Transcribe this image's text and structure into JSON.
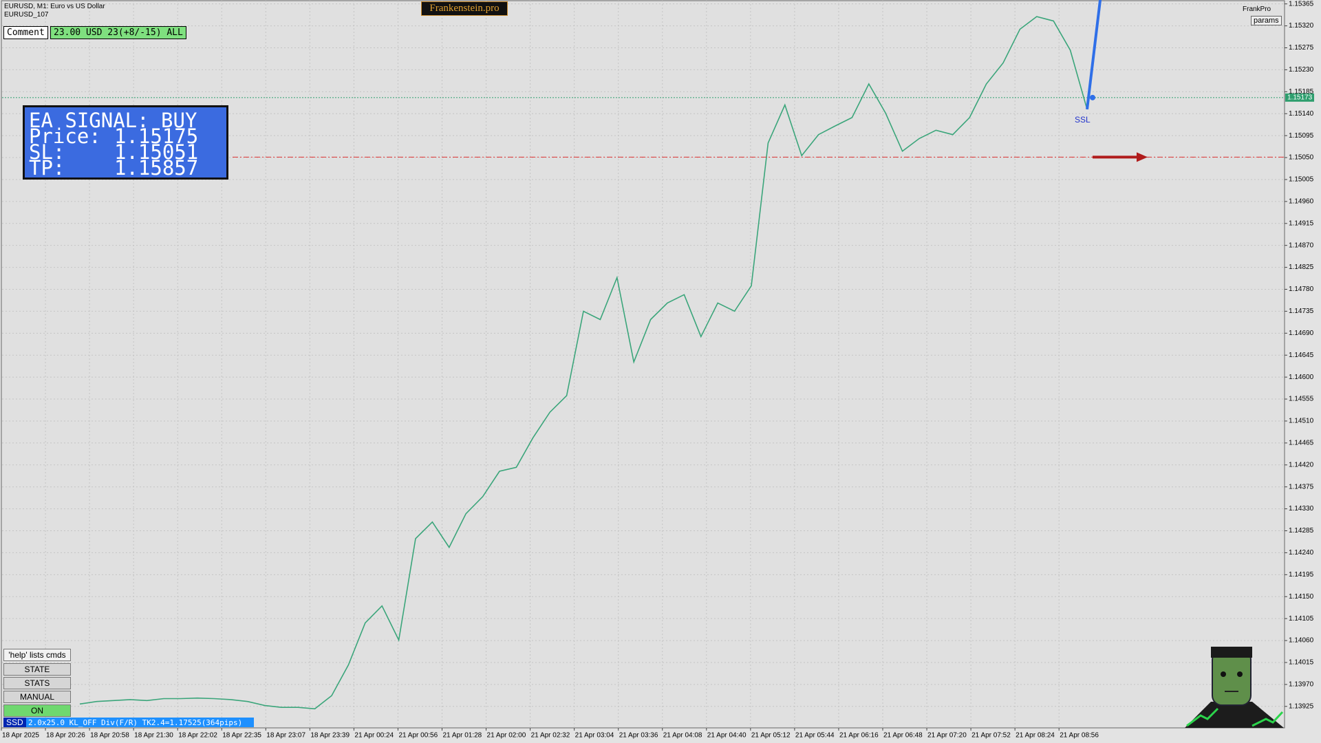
{
  "header": {
    "symbol": "EURUSD, M1:  Euro vs US Dollar",
    "account": "EURUSD_107",
    "brand": "Frankenstein.pro",
    "user": "FrankPro",
    "params": "params"
  },
  "comment": {
    "label": "Comment",
    "text": "23.00 USD 23(+8/-15) ALL"
  },
  "signal_panel": {
    "title": "EA SIGNAL: BUY",
    "rows": [
      {
        "label": "Price:",
        "value": 1.15175
      },
      {
        "label": "SL:",
        "value": 1.15051
      },
      {
        "label": "TP:",
        "value": 1.15857
      }
    ]
  },
  "buttons": [
    "'help' lists cmds",
    "STATE",
    "STATS",
    "MANUAL",
    "ON"
  ],
  "status": {
    "tag": "SSD",
    "text": "2.0x25.0 KL_OFF Div(F/R) TK2.4=1.17525(364pips)"
  },
  "signal_label": "SSL",
  "chart_data": {
    "type": "line",
    "color": "#3aa57a",
    "values": [
      1.1393,
      1.13935,
      1.13937,
      1.13939,
      1.13937,
      1.13941,
      1.13941,
      1.13942,
      1.13941,
      1.13939,
      1.13935,
      1.13927,
      1.13923,
      1.13923,
      1.1392,
      1.13947,
      1.1401,
      1.14096,
      1.14131,
      1.14061,
      1.14269,
      1.14303,
      1.14251,
      1.1432,
      1.14355,
      1.14407,
      1.14415,
      1.14476,
      1.14528,
      1.14562,
      1.14735,
      1.14718,
      1.14804,
      1.14631,
      1.14718,
      1.14752,
      1.14769,
      1.14683,
      1.14752,
      1.14735,
      1.14787,
      1.1508,
      1.15158,
      1.15054,
      1.15097,
      1.15115,
      1.15132,
      1.15201,
      1.15141,
      1.15063,
      1.15089,
      1.15106,
      1.15097,
      1.15132,
      1.15201,
      1.15244,
      1.15313,
      1.15339,
      1.1533,
      1.1527,
      1.15149
    ],
    "x_labels": [
      "18 Apr 2025",
      "18 Apr 20:26",
      "18 Apr 20:58",
      "18 Apr 21:30",
      "18 Apr 22:02",
      "18 Apr 22:35",
      "18 Apr 23:07",
      "18 Apr 23:39",
      "21 Apr 00:24",
      "21 Apr 00:56",
      "21 Apr 01:28",
      "21 Apr 02:00",
      "21 Apr 02:32",
      "21 Apr 03:04",
      "21 Apr 03:36",
      "21 Apr 04:08",
      "21 Apr 04:40",
      "21 Apr 05:12",
      "21 Apr 05:44",
      "21 Apr 06:16",
      "21 Apr 06:48",
      "21 Apr 07:20",
      "21 Apr 07:52",
      "21 Apr 08:24",
      "21 Apr 08:56"
    ],
    "ylim": [
      1.13881,
      1.15373
    ],
    "yticks": [
      1.15365,
      {
        "value": 1.1532,
        "label": "1.15320"
      },
      1.15275,
      {
        "value": 1.1523,
        "label": "1.15230"
      },
      1.15185,
      {
        "value": 1.1514,
        "label": "1.15140"
      },
      1.15095,
      {
        "value": 1.1505,
        "label": "1.15050"
      },
      1.15005,
      {
        "value": 1.1496,
        "label": "1.14960"
      },
      1.14915,
      {
        "value": 1.1487,
        "label": "1.14870"
      },
      1.14825,
      {
        "value": 1.1478,
        "label": "1.14780"
      },
      1.14735,
      {
        "value": 1.1469,
        "label": "1.14690"
      },
      1.14645,
      {
        "value": 1.146,
        "label": "1.14600"
      },
      1.14555,
      {
        "value": 1.1451,
        "label": "1.14510"
      },
      1.14465,
      {
        "value": 1.1442,
        "label": "1.14420"
      },
      1.14375,
      {
        "value": 1.1433,
        "label": "1.14330"
      },
      1.14285,
      {
        "value": 1.1424,
        "label": "1.14240"
      },
      1.14195,
      {
        "value": 1.1415,
        "label": "1.14150"
      },
      1.14105,
      {
        "value": 1.1406,
        "label": "1.14060"
      },
      1.14015,
      {
        "value": 1.1397,
        "label": "1.13970"
      },
      1.13925
    ],
    "current_price": 1.15173,
    "grid": true
  }
}
